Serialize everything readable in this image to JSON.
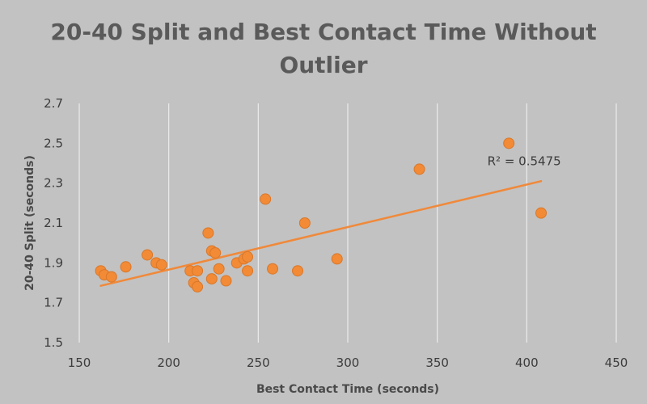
{
  "chart_data": {
    "type": "scatter",
    "title_lines": [
      "20-40 Split and Best Contact Time Without",
      "Outlier"
    ],
    "xlabel": "Best Contact Time (seconds)",
    "ylabel": "20-40 Split (seconds)",
    "xlim": [
      150,
      450
    ],
    "ylim": [
      1.5,
      2.7
    ],
    "xticks": [
      150,
      200,
      250,
      300,
      350,
      400,
      450
    ],
    "yticks": [
      1.5,
      1.7,
      1.9,
      2.1,
      2.3,
      2.5,
      2.7
    ],
    "ytick_labels": [
      "1.5",
      "1.7",
      "1.9",
      "2.1",
      "2.3",
      "2.5",
      "2.7"
    ],
    "grid": "vertical",
    "points": [
      {
        "x": 162,
        "y": 1.86
      },
      {
        "x": 164,
        "y": 1.84
      },
      {
        "x": 168,
        "y": 1.83
      },
      {
        "x": 176,
        "y": 1.88
      },
      {
        "x": 188,
        "y": 1.94
      },
      {
        "x": 193,
        "y": 1.9
      },
      {
        "x": 196,
        "y": 1.89
      },
      {
        "x": 212,
        "y": 1.86
      },
      {
        "x": 214,
        "y": 1.8
      },
      {
        "x": 216,
        "y": 1.86
      },
      {
        "x": 216,
        "y": 1.78
      },
      {
        "x": 222,
        "y": 2.05
      },
      {
        "x": 224,
        "y": 1.96
      },
      {
        "x": 226,
        "y": 1.95
      },
      {
        "x": 224,
        "y": 1.82
      },
      {
        "x": 228,
        "y": 1.87
      },
      {
        "x": 232,
        "y": 1.81
      },
      {
        "x": 238,
        "y": 1.9
      },
      {
        "x": 242,
        "y": 1.92
      },
      {
        "x": 244,
        "y": 1.93
      },
      {
        "x": 244,
        "y": 1.86
      },
      {
        "x": 254,
        "y": 2.22
      },
      {
        "x": 258,
        "y": 1.87
      },
      {
        "x": 272,
        "y": 1.86
      },
      {
        "x": 276,
        "y": 2.1
      },
      {
        "x": 294,
        "y": 1.92
      },
      {
        "x": 340,
        "y": 2.37
      },
      {
        "x": 390,
        "y": 2.5
      },
      {
        "x": 408,
        "y": 2.15
      }
    ],
    "trendline": {
      "x": [
        162,
        408
      ],
      "y": [
        1.785,
        2.31
      ]
    },
    "r_squared_label": "R² = 0.5475",
    "r_squared_anchor": {
      "x": 378,
      "y": 2.39
    },
    "colors": {
      "background": "#c2c2c2",
      "point": "#f28a36",
      "point_edge": "#d9782a",
      "trendline": "#f0893a",
      "grid": "#ececec"
    }
  }
}
